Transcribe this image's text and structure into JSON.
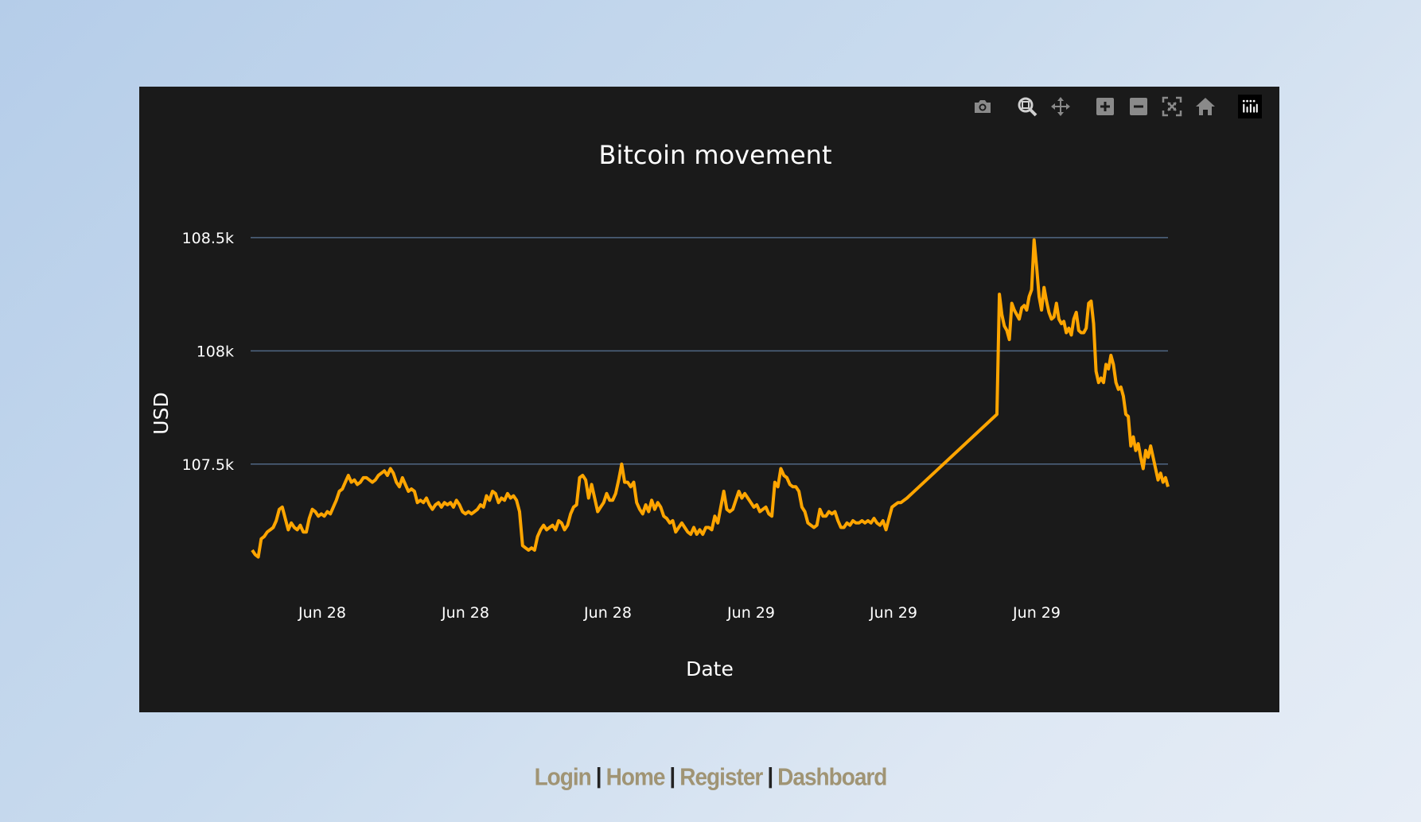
{
  "chart_data": {
    "type": "line",
    "title": "Bitcoin movement",
    "xlabel": "Date",
    "ylabel": "USD",
    "yticks": [
      "108.5k",
      "108k",
      "107.5k"
    ],
    "ytick_values": [
      108500,
      108000,
      107500
    ],
    "xticks": [
      "Jun 28",
      "Jun 28",
      "Jun 28",
      "Jun 29",
      "Jun 29",
      "Jun 29"
    ],
    "ylim": [
      106920,
      108640
    ],
    "grid": true,
    "line_color": "#FFA500",
    "series": [
      {
        "values": [
          107120,
          107100,
          107090,
          107170,
          107180,
          107200,
          107210,
          107220,
          107250,
          107300,
          107310,
          107260,
          107210,
          107240,
          107220,
          107210,
          107230,
          107200,
          107200,
          107260,
          107300,
          107290,
          107270,
          107280,
          107270,
          107290,
          107280,
          107310,
          107340,
          107380,
          107390,
          107420,
          107450,
          107420,
          107430,
          107410,
          107420,
          107440,
          107440,
          107430,
          107420,
          107430,
          107450,
          107460,
          107470,
          107450,
          107480,
          107460,
          107420,
          107400,
          107440,
          107410,
          107380,
          107390,
          107380,
          107330,
          107340,
          107330,
          107350,
          107320,
          107300,
          107320,
          107330,
          107310,
          107330,
          107320,
          107330,
          107310,
          107340,
          107320,
          107290,
          107280,
          107290,
          107280,
          107290,
          107300,
          107320,
          107310,
          107360,
          107340,
          107380,
          107370,
          107330,
          107350,
          107340,
          107370,
          107350,
          107360,
          107340,
          107290,
          107140,
          107130,
          107120,
          107130,
          107120,
          107180,
          107210,
          107230,
          107210,
          107220,
          107230,
          107210,
          107250,
          107240,
          107210,
          107230,
          107280,
          107310,
          107320,
          107440,
          107450,
          107430,
          107350,
          107410,
          107350,
          107290,
          107310,
          107330,
          107370,
          107340,
          107340,
          107370,
          107430,
          107500,
          107420,
          107420,
          107400,
          107420,
          107330,
          107300,
          107280,
          107320,
          107290,
          107340,
          107300,
          107330,
          107310,
          107270,
          107260,
          107240,
          107250,
          107200,
          107220,
          107240,
          107220,
          107200,
          107190,
          107220,
          107190,
          107210,
          107190,
          107220,
          107220,
          107210,
          107270,
          107240,
          107310,
          107380,
          107300,
          107290,
          107300,
          107340,
          107380,
          107350,
          107370,
          107350,
          107330,
          107310,
          107320,
          107290,
          107300,
          107310,
          107280,
          107270,
          107420,
          107400,
          107480,
          107450,
          107440,
          107410,
          107400,
          107400,
          107380,
          107310,
          107290,
          107240,
          107230,
          107220,
          107230,
          107300,
          107270,
          107270,
          107290,
          107280,
          107290,
          107250,
          107220,
          107220,
          107240,
          107230,
          107250,
          107240,
          107240,
          107250,
          107240,
          107250,
          107240,
          107260,
          107240,
          107230,
          107250,
          107210,
          107260,
          107310,
          107320,
          107330,
          107330,
          107340,
          107350,
          107720,
          108250,
          108160,
          108110,
          108090,
          108050,
          108210,
          108180,
          108160,
          108140,
          108190,
          108200,
          108180,
          108240,
          108270,
          108490,
          108370,
          108240,
          108180,
          108280,
          108220,
          108170,
          108140,
          108150,
          108210,
          108140,
          108120,
          108130,
          108080,
          108100,
          108070,
          108140,
          108170,
          108090,
          108080,
          108080,
          108100,
          108210,
          108220,
          108120,
          107910,
          107860,
          107880,
          107860,
          107940,
          107920,
          107980,
          107940,
          107860,
          107830,
          107840,
          107800,
          107720,
          107710,
          107580,
          107620,
          107560,
          107590,
          107530,
          107480,
          107560,
          107530,
          107580,
          107530,
          107480,
          107430,
          107460,
          107420,
          107440,
          107400
        ]
      }
    ]
  },
  "modebar": {
    "icons": [
      "camera-icon",
      "zoom-icon",
      "pan-icon",
      "zoom-in-icon",
      "zoom-out-icon",
      "autoscale-icon",
      "reset-axes-icon",
      "plotly-logo-icon"
    ]
  },
  "footer": {
    "login": "Login",
    "home": "Home",
    "register": "Register",
    "dashboard": "Dashboard",
    "separator": "|"
  }
}
